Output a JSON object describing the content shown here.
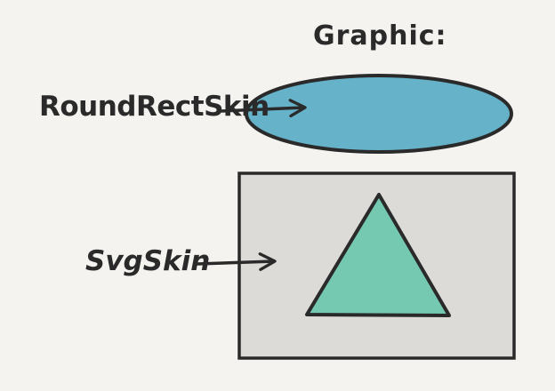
{
  "title": "Graphic:",
  "labels": {
    "round_rect": "RoundRectSkin",
    "svg": "SvgSkin"
  },
  "colors": {
    "background": "#f4f3ef",
    "ink": "#2a2a2a",
    "ellipse_fill": "#65b2c9",
    "rect_fill": "#dcdbd7",
    "triangle_fill": "#76c9b1"
  }
}
